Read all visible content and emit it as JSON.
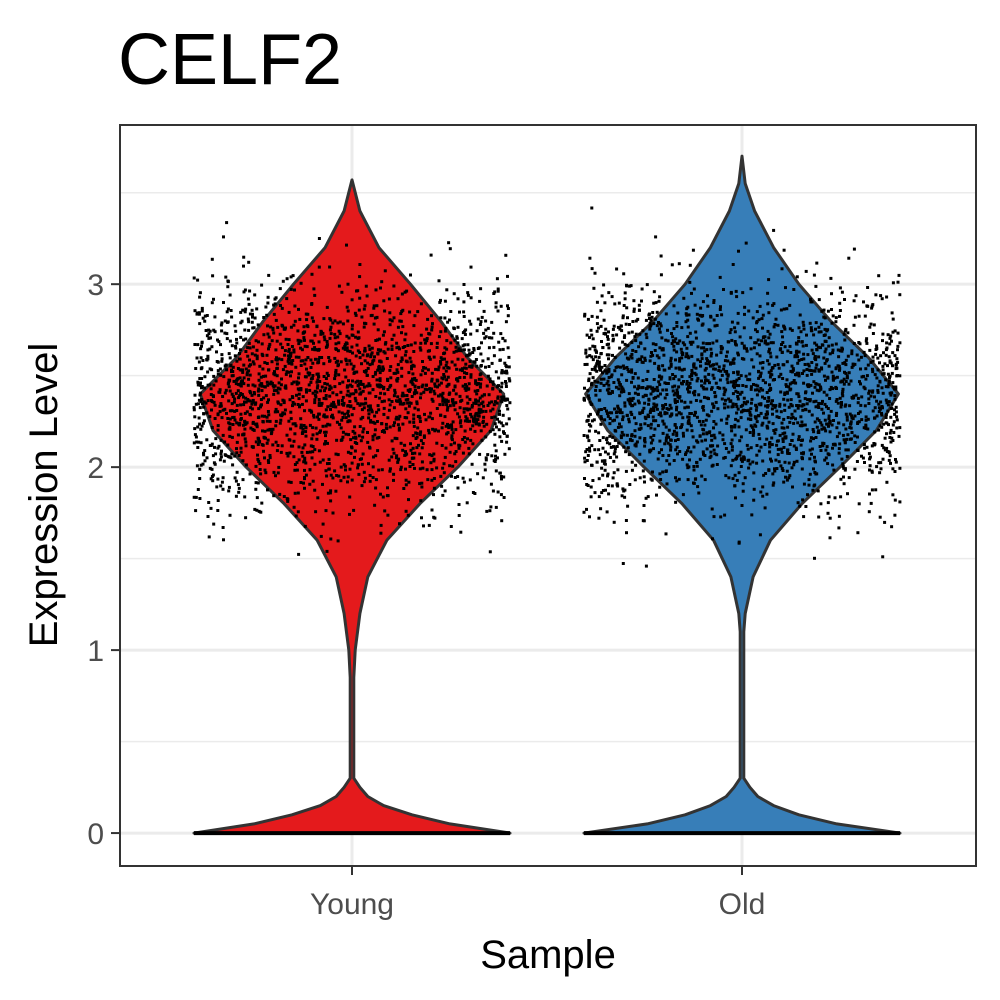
{
  "chart_data": {
    "type": "violin",
    "title": "CELF2",
    "xlabel": "Sample",
    "ylabel": "Expression Level",
    "categories": [
      "Young",
      "Old"
    ],
    "ylim": [
      -0.18,
      3.87
    ],
    "y_ticks": [
      0,
      1,
      2,
      3
    ],
    "y_tick_labels": [
      "0",
      "1",
      "2",
      "3"
    ],
    "grid": true,
    "grid_minor_y": [
      0.5,
      1.5,
      2.5,
      3.5
    ],
    "legend": "none",
    "points": "jittered individual cells",
    "series": [
      {
        "name": "Young",
        "color": "#E41A1C",
        "zero_fraction": 0.2,
        "expressed_range": [
          0.98,
          3.57
        ],
        "expressed_peak": 2.4,
        "density_profile": [
          {
            "y": 0.0,
            "width": 1.0
          },
          {
            "y": 0.05,
            "width": 0.62
          },
          {
            "y": 0.1,
            "width": 0.38
          },
          {
            "y": 0.15,
            "width": 0.2
          },
          {
            "y": 0.2,
            "width": 0.1
          },
          {
            "y": 0.25,
            "width": 0.05
          },
          {
            "y": 0.3,
            "width": 0.01
          },
          {
            "y": 0.5,
            "width": 0.01
          },
          {
            "y": 0.85,
            "width": 0.01
          },
          {
            "y": 1.0,
            "width": 0.02
          },
          {
            "y": 1.2,
            "width": 0.05
          },
          {
            "y": 1.4,
            "width": 0.1
          },
          {
            "y": 1.6,
            "width": 0.22
          },
          {
            "y": 1.8,
            "width": 0.43
          },
          {
            "y": 2.0,
            "width": 0.67
          },
          {
            "y": 2.2,
            "width": 0.88
          },
          {
            "y": 2.4,
            "width": 0.96
          },
          {
            "y": 2.6,
            "width": 0.73
          },
          {
            "y": 2.8,
            "width": 0.56
          },
          {
            "y": 3.0,
            "width": 0.37
          },
          {
            "y": 3.2,
            "width": 0.17
          },
          {
            "y": 3.4,
            "width": 0.05
          },
          {
            "y": 3.57,
            "width": 0.0
          }
        ]
      },
      {
        "name": "Old",
        "color": "#377EB8",
        "zero_fraction": 0.2,
        "expressed_range": [
          0.92,
          3.7
        ],
        "expressed_peak": 2.4,
        "density_profile": [
          {
            "y": 0.0,
            "width": 1.0
          },
          {
            "y": 0.05,
            "width": 0.6
          },
          {
            "y": 0.1,
            "width": 0.36
          },
          {
            "y": 0.15,
            "width": 0.2
          },
          {
            "y": 0.2,
            "width": 0.1
          },
          {
            "y": 0.25,
            "width": 0.05
          },
          {
            "y": 0.3,
            "width": 0.01
          },
          {
            "y": 0.6,
            "width": 0.01
          },
          {
            "y": 1.1,
            "width": 0.01
          },
          {
            "y": 1.2,
            "width": 0.02
          },
          {
            "y": 1.4,
            "width": 0.07
          },
          {
            "y": 1.6,
            "width": 0.18
          },
          {
            "y": 1.8,
            "width": 0.38
          },
          {
            "y": 2.0,
            "width": 0.62
          },
          {
            "y": 2.2,
            "width": 0.85
          },
          {
            "y": 2.4,
            "width": 0.99
          },
          {
            "y": 2.6,
            "width": 0.8
          },
          {
            "y": 2.8,
            "width": 0.56
          },
          {
            "y": 3.0,
            "width": 0.36
          },
          {
            "y": 3.2,
            "width": 0.2
          },
          {
            "y": 3.4,
            "width": 0.08
          },
          {
            "y": 3.55,
            "width": 0.02
          },
          {
            "y": 3.7,
            "width": 0.0
          }
        ]
      }
    ]
  }
}
